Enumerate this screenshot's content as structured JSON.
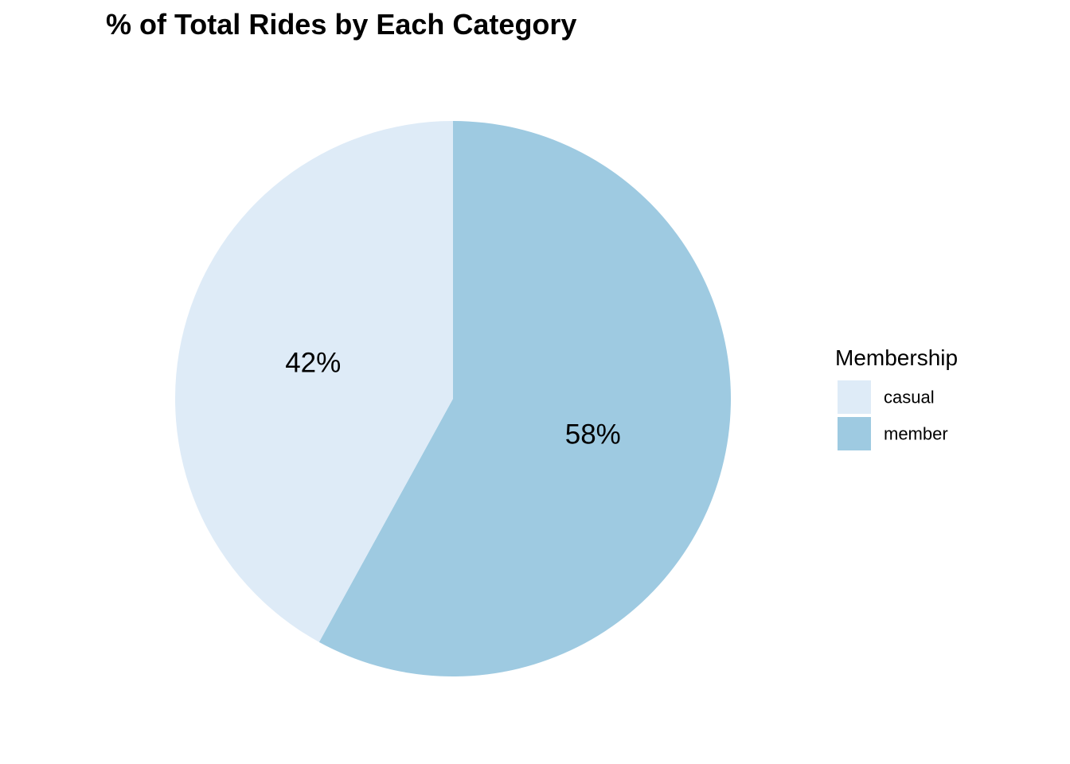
{
  "chart_data": {
    "type": "pie",
    "title": "% of Total Rides by Each Category",
    "legend": {
      "title": "Membership",
      "placement": "right"
    },
    "slices": [
      {
        "name": "member",
        "value": 58,
        "label": "58%",
        "color": "#9ecae1"
      },
      {
        "name": "casual",
        "value": 42,
        "label": "42%",
        "color": "#deebf7"
      }
    ],
    "start": "12 o'clock",
    "direction": "clockwise"
  }
}
